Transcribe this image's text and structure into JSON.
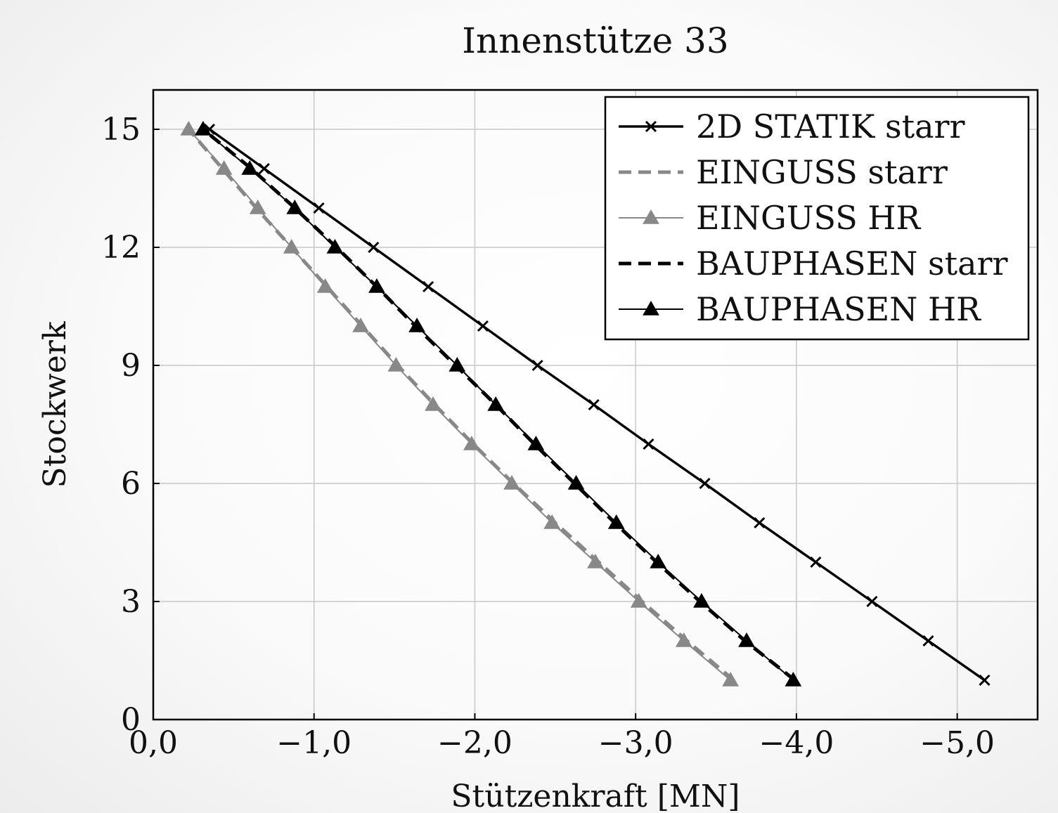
{
  "chart_data": {
    "type": "line",
    "title": "Innenstütze 33",
    "xlabel": "Stützenkraft [MN]",
    "ylabel": "Stockwerk",
    "xlim": [
      0,
      -5.5
    ],
    "ylim": [
      0,
      16
    ],
    "x_ticks": [
      0,
      -1,
      -2,
      -3,
      -4,
      -5
    ],
    "x_tick_labels": [
      "0,0",
      "−1,0",
      "−2,0",
      "−3,0",
      "−4,0",
      "−5,0"
    ],
    "y_ticks": [
      0,
      3,
      6,
      9,
      12,
      15
    ],
    "y_tick_labels": [
      "0",
      "3",
      "6",
      "9",
      "12",
      "15"
    ],
    "grid": true,
    "legend_position": "top-right",
    "series": [
      {
        "name": "2D STATIK starr",
        "color": "#000000",
        "dash": "solid",
        "marker": "cross",
        "width": 3.5,
        "x": [
          -5.17,
          -4.82,
          -4.47,
          -4.12,
          -3.77,
          -3.43,
          -3.08,
          -2.74,
          -2.39,
          -2.05,
          -1.71,
          -1.37,
          -1.03,
          -0.69,
          -0.35
        ],
        "y": [
          1,
          2,
          3,
          4,
          5,
          6,
          7,
          8,
          9,
          10,
          11,
          12,
          13,
          14,
          15
        ]
      },
      {
        "name": "EINGUSS starr",
        "color": "#888888",
        "dash": "dashed",
        "marker": "none",
        "width": 5,
        "x": [
          -3.61,
          -3.32,
          -3.04,
          -2.77,
          -2.5,
          -2.24,
          -1.99,
          -1.75,
          -1.52,
          -1.3,
          -1.08,
          -0.86,
          -0.64,
          -0.43,
          -0.22
        ],
        "y": [
          1,
          2,
          3,
          4,
          5,
          6,
          7,
          8,
          9,
          10,
          11,
          12,
          13,
          14,
          15
        ]
      },
      {
        "name": "EINGUSS HR",
        "color": "#888888",
        "dash": "solid",
        "marker": "triangle",
        "width": 2,
        "x": [
          -3.59,
          -3.3,
          -3.02,
          -2.75,
          -2.48,
          -2.23,
          -1.98,
          -1.74,
          -1.51,
          -1.29,
          -1.07,
          -0.86,
          -0.65,
          -0.44,
          -0.22
        ],
        "y": [
          1,
          2,
          3,
          4,
          5,
          6,
          7,
          8,
          9,
          10,
          11,
          12,
          13,
          14,
          15
        ]
      },
      {
        "name": "BAUPHASEN starr",
        "color": "#000000",
        "dash": "dashed",
        "marker": "none",
        "width": 5,
        "x": [
          -3.99,
          -3.68,
          -3.4,
          -3.13,
          -2.87,
          -2.62,
          -2.37,
          -2.13,
          -1.88,
          -1.63,
          -1.39,
          -1.14,
          -0.88,
          -0.61,
          -0.31
        ],
        "y": [
          1,
          2,
          3,
          4,
          5,
          6,
          7,
          8,
          9,
          10,
          11,
          12,
          13,
          14,
          15
        ]
      },
      {
        "name": "BAUPHASEN HR",
        "color": "#000000",
        "dash": "solid",
        "marker": "triangle",
        "width": 2,
        "x": [
          -3.98,
          -3.69,
          -3.41,
          -3.14,
          -2.88,
          -2.63,
          -2.38,
          -2.13,
          -1.89,
          -1.64,
          -1.39,
          -1.13,
          -0.88,
          -0.6,
          -0.31
        ],
        "y": [
          1,
          2,
          3,
          4,
          5,
          6,
          7,
          8,
          9,
          10,
          11,
          12,
          13,
          14,
          15
        ]
      }
    ]
  }
}
